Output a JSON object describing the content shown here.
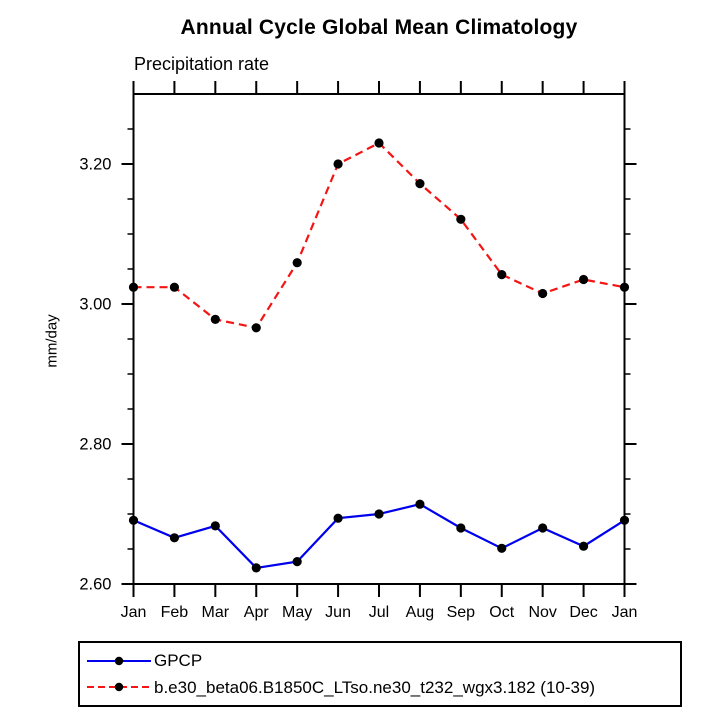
{
  "chart_data": {
    "type": "line",
    "title": "Annual Cycle Global Mean Climatology",
    "subtitle": "Precipitation rate",
    "ylabel": "mm/day",
    "categories": [
      "Jan",
      "Feb",
      "Mar",
      "Apr",
      "May",
      "Jun",
      "Jul",
      "Aug",
      "Sep",
      "Oct",
      "Nov",
      "Dec",
      "Jan"
    ],
    "series": [
      {
        "name": "GPCP",
        "color": "#0000ee",
        "line_style": "solid",
        "marker": "filled-circle",
        "marker_color": "#000000",
        "values": [
          2.691,
          2.666,
          2.683,
          2.623,
          2.632,
          2.694,
          2.7,
          2.714,
          2.68,
          2.651,
          2.68,
          2.654,
          2.691
        ]
      },
      {
        "name": "b.e30_beta06.B1850C_LTso.ne30_t232_wgx3.182 (10-39)",
        "color": "#f41414",
        "line_style": "dashed",
        "marker": "filled-circle",
        "marker_color": "#000000",
        "values": [
          3.024,
          3.024,
          2.978,
          2.966,
          3.059,
          3.2,
          3.23,
          3.172,
          3.121,
          3.042,
          3.015,
          3.035,
          3.024
        ]
      }
    ],
    "ylim": [
      2.6,
      3.3
    ],
    "yticks_major": [
      2.6,
      2.8,
      3.0,
      3.2
    ],
    "ytick_labels": [
      "2.60",
      "2.80",
      "3.00",
      "3.20"
    ],
    "ytick_minor_step": 0.05,
    "grid": false,
    "legend_position": "bottom-left",
    "axis_color": "#000000",
    "background_color": "#ffffff"
  }
}
